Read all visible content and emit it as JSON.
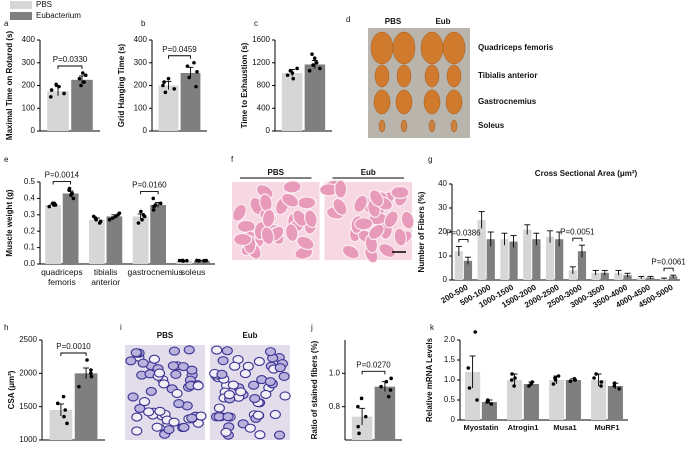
{
  "legend": [
    {
      "name": "PBS",
      "color": "#d6d6d6"
    },
    {
      "name": "Eubacterium",
      "color": "#7f7f7f"
    }
  ],
  "chart_data": [
    {
      "type": "bar",
      "panel": "a",
      "ylabel": "Maximal Time on Rotarod (s)",
      "categories": [
        null
      ],
      "ylim": [
        0,
        400
      ],
      "yticks": [
        0,
        100,
        200,
        300,
        400
      ],
      "annotations": [
        "P=0.0330"
      ],
      "series": [
        {
          "color": "#d6d6d6",
          "values": [
            175
          ],
          "errors": [
            20
          ],
          "points": [
            [
              150,
              165,
              180,
              195,
              205
            ]
          ]
        },
        {
          "color": "#7f7f7f",
          "values": [
            225
          ],
          "errors": [
            17
          ],
          "points": [
            [
              200,
              215,
              230,
              245,
              255
            ]
          ]
        }
      ]
    },
    {
      "type": "bar",
      "panel": "b",
      "ylabel": "Grid Hanging Time (s)",
      "categories": [
        null
      ],
      "ylim": [
        0,
        400
      ],
      "yticks": [
        0,
        100,
        200,
        300,
        400
      ],
      "annotations": [
        "P=0.0459"
      ],
      "series": [
        {
          "color": "#d6d6d6",
          "values": [
            200
          ],
          "errors": [
            18
          ],
          "points": [
            [
              170,
              185,
              200,
              215,
              230
            ]
          ]
        },
        {
          "color": "#7f7f7f",
          "values": [
            255
          ],
          "errors": [
            25
          ],
          "points": [
            [
              195,
              235,
              260,
              285,
              300
            ]
          ]
        }
      ]
    },
    {
      "type": "bar",
      "panel": "c",
      "ylabel": "Time to Exhaustion (s)",
      "categories": [
        null
      ],
      "ylim": [
        0,
        1600
      ],
      "yticks": [
        0,
        400,
        800,
        1200,
        1600
      ],
      "annotations": [],
      "series": [
        {
          "color": "#d6d6d6",
          "values": [
            1020
          ],
          "errors": [
            60
          ],
          "points": [
            [
              920,
              980,
              1020,
              1060,
              1100
            ]
          ]
        },
        {
          "color": "#7f7f7f",
          "values": [
            1170
          ],
          "errors": [
            70
          ],
          "points": [
            [
              1060,
              1100,
              1160,
              1200,
              1280,
              1350
            ]
          ]
        }
      ]
    },
    {
      "type": "image",
      "panel": "d",
      "style": "muscle",
      "columns": [
        "PBS",
        "Eub"
      ],
      "rows": [
        "Quadriceps femoris",
        "Tibialis anterior",
        "Gastrocnemius",
        "Soleus"
      ]
    },
    {
      "type": "bar",
      "panel": "e",
      "ylabel": "Muscle weight (g)",
      "categories": [
        "quadriceps femoris",
        "tibialis anterior",
        "gastrocnemius",
        "soleus"
      ],
      "ylim": [
        0,
        0.5
      ],
      "yticks": [
        {
          "value": 0,
          "label": "0.0"
        },
        0.1,
        0.2,
        0.3,
        0.4,
        0.5
      ],
      "annotations": [
        "P=0.0014",
        "P=0.0160"
      ],
      "series": [
        {
          "color": "#d6d6d6",
          "values": [
            0.36,
            0.27,
            0.29,
            0.02
          ],
          "errors": [
            0.005,
            0.01,
            0.015,
            0.002
          ],
          "points": [
            [
              0.35,
              0.36,
              0.36,
              0.37,
              0.37
            ],
            [
              0.25,
              0.26,
              0.27,
              0.28,
              0.29
            ],
            [
              0.25,
              0.27,
              0.29,
              0.3,
              0.32
            ],
            [
              0.018,
              0.02,
              0.02,
              0.021,
              0.022
            ]
          ]
        },
        {
          "color": "#7f7f7f",
          "values": [
            0.43,
            0.29,
            0.36,
            0.02
          ],
          "errors": [
            0.015,
            0.01,
            0.015,
            0.002
          ],
          "points": [
            [
              0.4,
              0.42,
              0.43,
              0.45,
              0.46
            ],
            [
              0.27,
              0.28,
              0.29,
              0.3,
              0.31
            ],
            [
              0.33,
              0.35,
              0.36,
              0.37,
              0.4
            ],
            [
              0.019,
              0.02,
              0.02,
              0.021,
              0.022
            ]
          ]
        }
      ]
    },
    {
      "type": "image",
      "panel": "f",
      "style": "he",
      "columns": [
        "PBS",
        "Eub"
      ],
      "rows": []
    },
    {
      "type": "bar",
      "panel": "g",
      "title": "Cross Sectional Area (μm²)",
      "ylabel": "Number of Fibers (%)",
      "categories": [
        "200-500",
        "500-1000",
        "1000-1500",
        "1500-2000",
        "2000-2500",
        "2500-3000",
        "3000-3500",
        "3500-4000",
        "4000-4500",
        "4500-5000"
      ],
      "ylim": [
        0,
        40
      ],
      "yticks": [
        0,
        10,
        20,
        30,
        40
      ],
      "annotations": [
        "P=0.0386",
        "P=0.0051",
        "P=0.0061"
      ],
      "series": [
        {
          "color": "#d6d6d6",
          "values": [
            12,
            25,
            17,
            21,
            18,
            4,
            3,
            3,
            1,
            0.5
          ],
          "errors": [
            2,
            3.5,
            2.5,
            2,
            2.5,
            1.5,
            1,
            1,
            0.5,
            0.3
          ]
        },
        {
          "color": "#7f7f7f",
          "values": [
            8,
            17,
            16,
            17,
            17,
            12,
            3,
            2,
            1,
            1.5
          ],
          "errors": [
            1.5,
            3,
            2.5,
            2.5,
            3,
            2.5,
            1,
            0.8,
            0.5,
            0.5
          ]
        }
      ]
    },
    {
      "type": "bar",
      "panel": "h",
      "ylabel": "CSA (μm²)",
      "categories": [
        null
      ],
      "ylim": [
        1000,
        2500
      ],
      "yticks": [
        1000,
        1500,
        2000,
        2500
      ],
      "annotations": [
        "P=0.0010"
      ],
      "series": [
        {
          "color": "#d6d6d6",
          "values": [
            1450
          ],
          "errors": [
            90
          ],
          "points": [
            [
              1250,
              1350,
              1450,
              1550,
              1650
            ]
          ]
        },
        {
          "color": "#7f7f7f",
          "values": [
            2000
          ],
          "errors": [
            80
          ],
          "points": [
            [
              1800,
              1950,
              2000,
              2050,
              2200
            ]
          ]
        }
      ]
    },
    {
      "type": "image",
      "panel": "i",
      "style": "stain",
      "columns": [
        "PBS",
        "Eub"
      ],
      "rows": []
    },
    {
      "type": "bar",
      "panel": "j",
      "ylabel": "Ratio of stained fibers (%)",
      "categories": [
        null
      ],
      "ylim": [
        0.6,
        1.2
      ],
      "yticks": [
        0.8,
        {
          "value": 1,
          "label": "1.0"
        }
      ],
      "annotations": [
        "P=0.0270"
      ],
      "series": [
        {
          "color": "#d6d6d6",
          "values": [
            0.74
          ],
          "errors": [
            0.05
          ],
          "points": [
            [
              0.64,
              0.68,
              0.74,
              0.8,
              0.85
            ]
          ]
        },
        {
          "color": "#7f7f7f",
          "values": [
            0.92
          ],
          "errors": [
            0.03
          ],
          "points": [
            [
              0.86,
              0.9,
              0.92,
              0.95,
              0.97
            ]
          ]
        }
      ]
    },
    {
      "type": "bar",
      "panel": "k",
      "ylabel": "Relative mRNA Levels",
      "categories": [
        "Myostatin",
        "Atrogin1",
        "Musa1",
        "MuRF1"
      ],
      "ylim": [
        0,
        2
      ],
      "yticks": [
        0,
        0.5,
        {
          "value": 1,
          "label": "1.0"
        },
        1.5,
        {
          "value": 2,
          "label": "2.0"
        }
      ],
      "annotations": [],
      "series": [
        {
          "color": "#d6d6d6",
          "values": [
            1.2,
            1.0,
            1.0,
            1.0
          ],
          "errors": [
            0.4,
            0.15,
            0.1,
            0.15
          ],
          "points": [
            [
              0.5,
              0.8,
              1.3,
              2.2
            ],
            [
              0.85,
              1.0,
              1.05,
              1.15
            ],
            [
              0.9,
              1.0,
              1.05,
              1.1
            ],
            [
              0.85,
              0.95,
              1.05,
              1.15
            ]
          ]
        },
        {
          "color": "#7f7f7f",
          "values": [
            0.45,
            0.9,
            1.0,
            0.85
          ],
          "errors": [
            0.05,
            0.05,
            0.03,
            0.07
          ],
          "points": [
            [
              0.4,
              0.45,
              0.5
            ],
            [
              0.85,
              0.9,
              0.95
            ],
            [
              0.97,
              1.0,
              1.03
            ],
            [
              0.78,
              0.85,
              0.92
            ]
          ]
        }
      ]
    }
  ]
}
